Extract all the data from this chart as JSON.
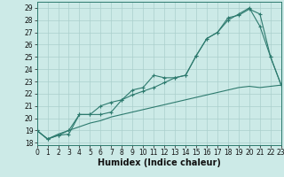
{
  "xlabel": "Humidex (Indice chaleur)",
  "bg_color": "#cceae7",
  "line_color": "#2d7a6e",
  "grid_color": "#aacfcc",
  "x_values": [
    0,
    1,
    2,
    3,
    4,
    5,
    6,
    7,
    8,
    9,
    10,
    11,
    12,
    13,
    14,
    15,
    16,
    17,
    18,
    19,
    20,
    21,
    22,
    23
  ],
  "line1": [
    19.0,
    18.3,
    18.6,
    18.7,
    20.3,
    20.3,
    20.3,
    20.5,
    21.5,
    21.9,
    22.2,
    22.5,
    22.9,
    23.3,
    23.5,
    25.1,
    26.5,
    27.0,
    28.0,
    28.5,
    29.0,
    27.5,
    25.0,
    22.7
  ],
  "line2": [
    19.0,
    18.3,
    18.6,
    19.0,
    20.3,
    20.3,
    21.0,
    21.3,
    21.5,
    22.3,
    22.5,
    23.5,
    23.3,
    23.3,
    23.5,
    25.1,
    26.5,
    27.0,
    28.2,
    28.4,
    28.9,
    28.5,
    25.0,
    22.7
  ],
  "line3": [
    19.0,
    18.3,
    18.7,
    19.0,
    19.3,
    19.6,
    19.8,
    20.1,
    20.3,
    20.5,
    20.7,
    20.9,
    21.1,
    21.3,
    21.5,
    21.7,
    21.9,
    22.1,
    22.3,
    22.5,
    22.6,
    22.5,
    22.6,
    22.7
  ],
  "xlim": [
    0,
    23
  ],
  "ylim": [
    17.8,
    29.5
  ],
  "yticks": [
    18,
    19,
    20,
    21,
    22,
    23,
    24,
    25,
    26,
    27,
    28,
    29
  ],
  "xticks": [
    0,
    1,
    2,
    3,
    4,
    5,
    6,
    7,
    8,
    9,
    10,
    11,
    12,
    13,
    14,
    15,
    16,
    17,
    18,
    19,
    20,
    21,
    22,
    23
  ],
  "tick_fontsize": 5.5,
  "xlabel_fontsize": 7
}
